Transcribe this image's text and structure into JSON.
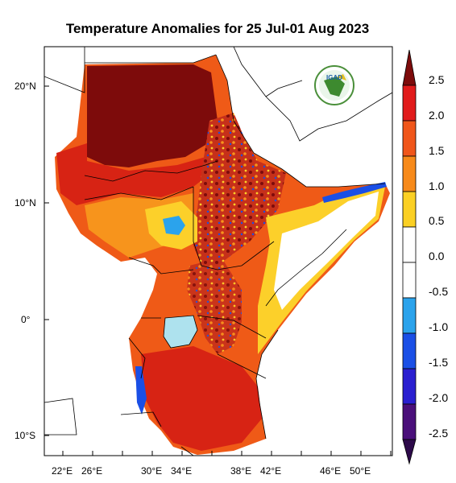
{
  "title": "Temperature Anomalies for 25 Jul-01 Aug 2023",
  "logo": {
    "text": "IGAD"
  },
  "lat_labels": [
    "20°N",
    "10°N",
    "0°",
    "10°S"
  ],
  "lon_labels": [
    "22°E",
    "26°E",
    "30°E",
    "34°E",
    "38°E",
    "42°E",
    "46°E",
    "50°E"
  ],
  "colorbar": {
    "labels": [
      "2.5",
      "2.0",
      "1.5",
      "1.0",
      "0.5",
      "0.0",
      "-0.5",
      "-1.0",
      "-1.5",
      "-2.0",
      "-2.5"
    ],
    "colors": [
      "#7d0b0b",
      "#e11b1b",
      "#f0561a",
      "#f78a1a",
      "#fbd024",
      "#ffffff",
      "#ffffff",
      "#2ba3ec",
      "#1a4fe6",
      "#2a1fd0",
      "#4a0f7a",
      "#2d0a4a"
    ]
  },
  "colors": {
    "very_high": "#7d0b0b",
    "high": "#d72314",
    "mid_high": "#ef5a17",
    "mid": "#f7941c",
    "low": "#fcd02a",
    "neutral": "#ffffff",
    "cool": "#2ba3ec",
    "cold": "#1a4fe6",
    "lake": "#aee2ee"
  }
}
